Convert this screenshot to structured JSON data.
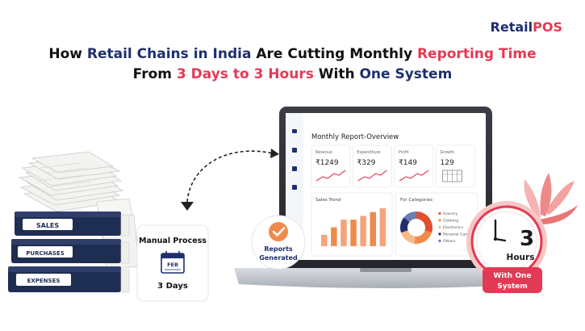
{
  "brand": {
    "part1": "Retail",
    "part2": "POS"
  },
  "headline": {
    "line1": [
      {
        "text": "How ",
        "style": "n"
      },
      {
        "text": "Retail Chains in India",
        "style": "b"
      },
      {
        "text": " Are Cutting Monthly ",
        "style": "n"
      },
      {
        "text": "Reporting Time",
        "style": "r"
      }
    ],
    "line2": [
      {
        "text": "From ",
        "style": "n"
      },
      {
        "text": "3 Days to 3 Hours",
        "style": "r"
      },
      {
        "text": " With ",
        "style": "n"
      },
      {
        "text": "One System",
        "style": "b"
      }
    ]
  },
  "binders": [
    "SALES",
    "PURCHASES",
    "EXPENSES"
  ],
  "manual_card": {
    "title": "Manual Process",
    "calendar_text": "FEB",
    "days": "3 Days"
  },
  "reports_badge": {
    "line1": "Reports",
    "line2": "Generated"
  },
  "dashboard": {
    "title": "Monthly Report-Overview",
    "kpis": [
      {
        "label": "Revenue",
        "value": "₹1249"
      },
      {
        "label": "Expenditure",
        "value": "₹329"
      },
      {
        "label": "Profit",
        "value": "₹149"
      },
      {
        "label": "Growth",
        "value": "129"
      }
    ],
    "sales_trend": {
      "title": "Sales Trend",
      "values": [
        3,
        5,
        7,
        7,
        8,
        9,
        10
      ]
    },
    "categories": {
      "title": "For Categories",
      "legend": [
        "Grocery",
        "Clothing",
        "Electronics",
        "Personal Care",
        "Others"
      ],
      "values": [
        30,
        22,
        18,
        16,
        14
      ],
      "colors": [
        "#e0502f",
        "#f08a4b",
        "#f6b98a",
        "#1f2f6e",
        "#6b7fb3"
      ]
    }
  },
  "hours_badge": {
    "number": "3",
    "unit": "Hours",
    "tag_line1": "With One",
    "tag_line2": "System"
  },
  "colors": {
    "navy": "#1f2f6e",
    "red": "#e23a55",
    "orange": "#f08a4b"
  }
}
